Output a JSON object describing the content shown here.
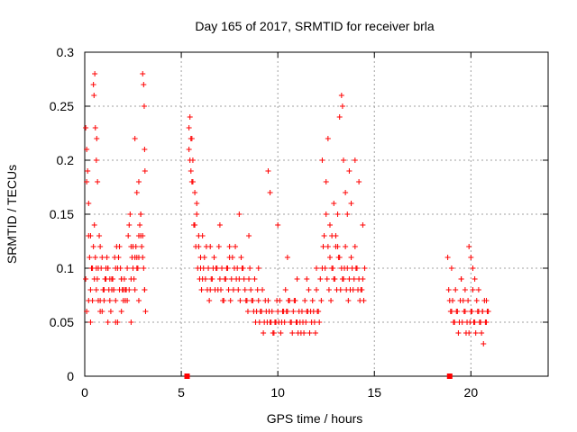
{
  "chart_data": {
    "type": "scatter",
    "title": "Day 165 of 2017, SRMTID for receiver brla",
    "xlabel": "GPS time / hours",
    "ylabel": "SRMTID / TECUs",
    "xlim": [
      0,
      24
    ],
    "ylim": [
      0,
      0.3
    ],
    "xticks": [
      "0",
      "5",
      "10",
      "15",
      "20"
    ],
    "yticks": [
      "0",
      "0.05",
      "0.1",
      "0.15",
      "0.2",
      "0.25",
      "0.3"
    ],
    "xtick_values": [
      0,
      5,
      10,
      15,
      20
    ],
    "ytick_values": [
      0,
      0.05,
      0.1,
      0.15,
      0.2,
      0.25,
      0.3
    ],
    "grid": true,
    "marker": "plus",
    "series_color": "#ff0000",
    "zero_markers": [
      5.3,
      18.9
    ],
    "series": [
      {
        "x": [
          0.05,
          0.1,
          0.15,
          0.2,
          0.25,
          0.3,
          0.35,
          0.4,
          0.45,
          0.5,
          0.55,
          0.6,
          0.65,
          0.7,
          0.75,
          0.8,
          0.85,
          0.9,
          0.95,
          1.0,
          1.05,
          1.1,
          1.15,
          1.2,
          1.25,
          1.3,
          1.35,
          1.4,
          1.45,
          1.5,
          1.55,
          1.6,
          1.65,
          1.7,
          1.75,
          1.8,
          1.85,
          1.9,
          1.95,
          2.0,
          2.05,
          2.1,
          2.15,
          2.2,
          2.25,
          2.3,
          2.35,
          2.4,
          2.45,
          2.5,
          2.55,
          2.6,
          2.65,
          2.7,
          2.75,
          2.8,
          2.85,
          2.9,
          2.95,
          3.0,
          3.05,
          3.1,
          3.15,
          0.05,
          0.1,
          0.2,
          0.3,
          0.4,
          0.5,
          0.6,
          0.7,
          0.8,
          0.9,
          1.0,
          1.1,
          1.2,
          1.3,
          1.4,
          1.5,
          1.6,
          1.7,
          1.8,
          1.9,
          2.0,
          2.1,
          2.2,
          2.3,
          2.4,
          2.5,
          2.6,
          2.7,
          2.8,
          2.9,
          3.0,
          3.1,
          0.45,
          0.48,
          0.52,
          0.55,
          0.6,
          0.62,
          0.66,
          3.0,
          3.05,
          3.08,
          3.1,
          3.12,
          2.6,
          2.7,
          2.8,
          2.9,
          0.1,
          0.2,
          0.3,
          0.8,
          1.2,
          1.6,
          1.9,
          2.4,
          2.8,
          5.4,
          5.5,
          5.6,
          5.7,
          5.8,
          5.9,
          6.0,
          6.1,
          6.2,
          6.3,
          6.4,
          6.5,
          6.6,
          6.7,
          6.8,
          6.9,
          7.0,
          7.1,
          7.2,
          7.3,
          7.4,
          7.5,
          7.6,
          7.7,
          7.8,
          7.9,
          8.0,
          8.1,
          8.2,
          8.3,
          8.4,
          8.5,
          8.6,
          8.7,
          8.8,
          8.9,
          9.0,
          9.1,
          9.2,
          9.3,
          9.4,
          9.5,
          9.6,
          9.7,
          9.8,
          9.9,
          10.0,
          10.1,
          10.2,
          10.3,
          10.4,
          10.5,
          10.6,
          10.7,
          10.8,
          10.9,
          11.0,
          11.1,
          11.2,
          11.3,
          11.4,
          11.5,
          11.6,
          11.7,
          11.8,
          11.9,
          12.0,
          12.1,
          12.2,
          12.3,
          12.4,
          12.5,
          12.6,
          12.7,
          12.8,
          12.9,
          13.0,
          13.1,
          13.2,
          13.3,
          13.4,
          13.5,
          13.6,
          13.7,
          13.8,
          13.9,
          14.0,
          14.1,
          14.2,
          14.3,
          14.4,
          14.5,
          5.45,
          5.55,
          5.65,
          5.75,
          5.85,
          5.95,
          6.05,
          6.15,
          6.25,
          6.35,
          6.45,
          6.55,
          6.65,
          6.75,
          6.85,
          6.95,
          7.05,
          7.15,
          7.25,
          7.35,
          7.45,
          7.55,
          7.65,
          7.75,
          7.85,
          7.95,
          8.05,
          8.15,
          8.25,
          8.35,
          8.45,
          8.55,
          8.65,
          8.75,
          8.85,
          8.95,
          9.05,
          9.15,
          9.25,
          9.35,
          9.45,
          9.55,
          9.65,
          9.75,
          9.85,
          9.95,
          10.05,
          10.15,
          10.25,
          10.35,
          10.45,
          10.55,
          10.65,
          10.75,
          10.85,
          10.95,
          11.05,
          11.15,
          11.25,
          11.35,
          11.45,
          11.55,
          11.65,
          11.75,
          11.85,
          11.95,
          12.05,
          12.15,
          12.25,
          12.35,
          12.45,
          12.55,
          12.65,
          12.75,
          12.85,
          12.95,
          13.05,
          13.15,
          13.25,
          13.35,
          13.45,
          13.55,
          13.65,
          13.75,
          13.85,
          13.95,
          14.05,
          14.15,
          14.25,
          14.35,
          14.45,
          5.4,
          5.45,
          5.5,
          5.55,
          5.6,
          5.7,
          5.8,
          5.9,
          6.0,
          6.1,
          6.5,
          7.0,
          7.5,
          8.0,
          8.5,
          9.0,
          9.5,
          9.6,
          10.0,
          10.5,
          11.0,
          11.5,
          12.0,
          12.3,
          12.5,
          12.6,
          12.7,
          12.8,
          12.9,
          13.0,
          13.1,
          13.2,
          13.3,
          13.35,
          13.4,
          13.5,
          13.6,
          13.7,
          13.8,
          14.0,
          14.2,
          14.4,
          18.8,
          18.9,
          19.0,
          19.1,
          19.2,
          19.3,
          19.4,
          19.5,
          19.6,
          19.7,
          19.8,
          19.9,
          20.0,
          20.1,
          20.2,
          20.3,
          20.4,
          20.5,
          20.6,
          20.7,
          20.8,
          20.9,
          18.85,
          18.95,
          19.05,
          19.15,
          19.25,
          19.35,
          19.45,
          19.55,
          19.65,
          19.75,
          19.85,
          19.95,
          20.05,
          20.15,
          20.25,
          20.35,
          20.45,
          20.55,
          20.65,
          20.75,
          20.85,
          19.0,
          19.5,
          19.7,
          19.9,
          20.0,
          20.1,
          20.2,
          20.4,
          20.6,
          20.8
        ],
        "y": [
          0.09,
          0.21,
          0.19,
          0.13,
          0.11,
          0.08,
          0.1,
          0.07,
          0.12,
          0.14,
          0.11,
          0.1,
          0.09,
          0.1,
          0.13,
          0.12,
          0.1,
          0.11,
          0.08,
          0.07,
          0.09,
          0.1,
          0.11,
          0.1,
          0.08,
          0.09,
          0.06,
          0.08,
          0.09,
          0.08,
          0.11,
          0.1,
          0.12,
          0.1,
          0.11,
          0.12,
          0.1,
          0.09,
          0.08,
          0.08,
          0.09,
          0.07,
          0.08,
          0.1,
          0.13,
          0.14,
          0.15,
          0.12,
          0.11,
          0.1,
          0.09,
          0.08,
          0.12,
          0.11,
          0.1,
          0.13,
          0.14,
          0.15,
          0.12,
          0.13,
          0.1,
          0.08,
          0.06,
          0.23,
          0.18,
          0.16,
          0.13,
          0.1,
          0.09,
          0.08,
          0.07,
          0.07,
          0.06,
          0.08,
          0.09,
          0.1,
          0.07,
          0.09,
          0.08,
          0.07,
          0.05,
          0.08,
          0.09,
          0.07,
          0.08,
          0.07,
          0.08,
          0.09,
          0.12,
          0.11,
          0.1,
          0.11,
          0.13,
          0.11,
          0.08,
          0.27,
          0.26,
          0.28,
          0.23,
          0.2,
          0.22,
          0.18,
          0.28,
          0.27,
          0.25,
          0.21,
          0.19,
          0.22,
          0.17,
          0.18,
          0.15,
          0.06,
          0.07,
          0.05,
          0.06,
          0.05,
          0.05,
          0.06,
          0.05,
          0.07,
          0.23,
          0.22,
          0.2,
          0.17,
          0.15,
          0.13,
          0.1,
          0.09,
          0.11,
          0.12,
          0.1,
          0.08,
          0.09,
          0.11,
          0.1,
          0.08,
          0.09,
          0.1,
          0.07,
          0.09,
          0.1,
          0.11,
          0.09,
          0.08,
          0.12,
          0.1,
          0.09,
          0.11,
          0.1,
          0.08,
          0.07,
          0.09,
          0.08,
          0.07,
          0.09,
          0.06,
          0.07,
          0.06,
          0.08,
          0.05,
          0.06,
          0.07,
          0.05,
          0.06,
          0.04,
          0.05,
          0.06,
          0.07,
          0.05,
          0.06,
          0.08,
          0.06,
          0.07,
          0.05,
          0.06,
          0.07,
          0.05,
          0.06,
          0.04,
          0.05,
          0.07,
          0.06,
          0.08,
          0.06,
          0.07,
          0.05,
          0.08,
          0.06,
          0.09,
          0.1,
          0.13,
          0.15,
          0.12,
          0.11,
          0.1,
          0.09,
          0.13,
          0.12,
          0.11,
          0.1,
          0.09,
          0.12,
          0.1,
          0.09,
          0.11,
          0.08,
          0.12,
          0.1,
          0.09,
          0.08,
          0.09,
          0.1,
          0.2,
          0.18,
          0.14,
          0.12,
          0.1,
          0.09,
          0.08,
          0.1,
          0.09,
          0.08,
          0.07,
          0.09,
          0.1,
          0.08,
          0.1,
          0.12,
          0.08,
          0.07,
          0.09,
          0.1,
          0.08,
          0.07,
          0.11,
          0.1,
          0.09,
          0.08,
          0.07,
          0.1,
          0.09,
          0.07,
          0.06,
          0.1,
          0.07,
          0.06,
          0.05,
          0.08,
          0.05,
          0.06,
          0.04,
          0.07,
          0.05,
          0.06,
          0.05,
          0.04,
          0.05,
          0.07,
          0.05,
          0.04,
          0.06,
          0.05,
          0.06,
          0.07,
          0.05,
          0.04,
          0.07,
          0.05,
          0.04,
          0.05,
          0.06,
          0.04,
          0.05,
          0.06,
          0.04,
          0.05,
          0.06,
          0.04,
          0.06,
          0.05,
          0.07,
          0.12,
          0.1,
          0.09,
          0.08,
          0.07,
          0.1,
          0.09,
          0.08,
          0.11,
          0.08,
          0.09,
          0.1,
          0.08,
          0.07,
          0.08,
          0.1,
          0.09,
          0.1,
          0.08,
          0.07,
          0.08,
          0.07,
          0.21,
          0.24,
          0.19,
          0.22,
          0.18,
          0.14,
          0.16,
          0.12,
          0.11,
          0.13,
          0.12,
          0.14,
          0.12,
          0.15,
          0.13,
          0.1,
          0.19,
          0.17,
          0.14,
          0.11,
          0.09,
          0.09,
          0.1,
          0.2,
          0.18,
          0.22,
          0.14,
          0.13,
          0.16,
          0.12,
          0.15,
          0.24,
          0.26,
          0.25,
          0.2,
          0.17,
          0.15,
          0.19,
          0.16,
          0.2,
          0.18,
          0.14,
          0.11,
          0.07,
          0.06,
          0.05,
          0.08,
          0.06,
          0.05,
          0.09,
          0.07,
          0.06,
          0.05,
          0.04,
          0.06,
          0.08,
          0.05,
          0.07,
          0.06,
          0.05,
          0.06,
          0.07,
          0.05,
          0.06,
          0.08,
          0.06,
          0.07,
          0.05,
          0.06,
          0.04,
          0.07,
          0.05,
          0.06,
          0.04,
          0.07,
          0.05,
          0.06,
          0.05,
          0.04,
          0.06,
          0.05,
          0.04,
          0.03,
          0.05,
          0.06,
          0.1,
          0.09,
          0.08,
          0.12,
          0.11,
          0.1,
          0.09,
          0.08,
          0.06,
          0.07
        ]
      }
    ]
  }
}
